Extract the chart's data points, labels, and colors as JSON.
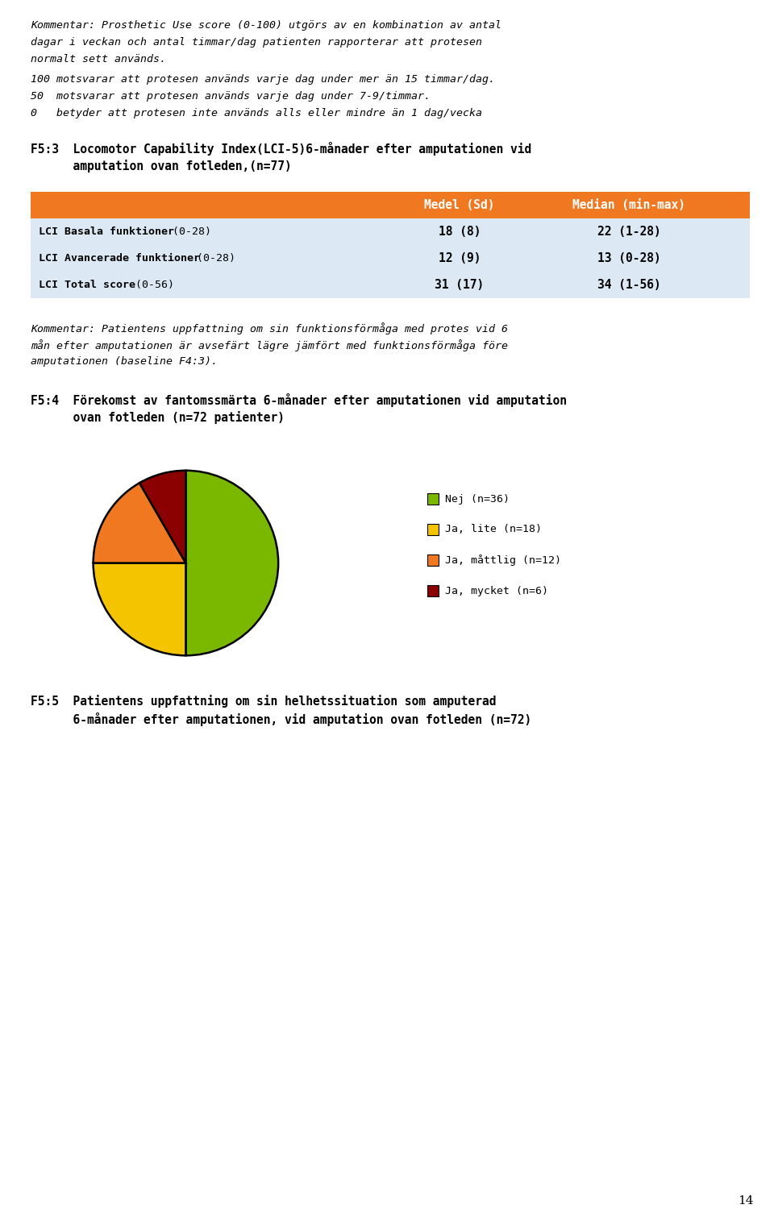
{
  "background_color": "#ffffff",
  "page_number": "14",
  "comment_text_1_lines": [
    "Kommentar: Prosthetic Use score (0-100) utgörs av en kombination av antal",
    "dagar i veckan och antal timmar/dag patienten rapporterar att protesen",
    "normalt sett används."
  ],
  "comment_text_2": "100 motsvarar att protesen används varje dag under mer än 15 timmar/dag.",
  "comment_text_3": "50  motsvarar att protesen används varje dag under 7-9/timmar.",
  "comment_text_4": "0   betyder att protesen inte används alls eller mindre än 1 dag/vecka",
  "section_title_f53_lines": [
    "F5:3  Locomotor Capability Index(LCI-5)6-månader efter amputationen vid",
    "      amputation ovan fotleden,(n=77)"
  ],
  "table_header_col2": "Medel (Sd)",
  "table_header_col3": "Median (min-max)",
  "table_header_color": "#f07820",
  "table_header_text_color": "#ffffff",
  "table_rows": [
    {
      "label": "LCI Basala funktioner",
      "range": "(0-28)",
      "col2": "18 (8)",
      "col3": "22 (1-28)"
    },
    {
      "label": "LCI Avancerade funktioner",
      "range": "(0-28)",
      "col2": "12 (9)",
      "col3": "13 (0-28)"
    },
    {
      "label": "LCI Total score",
      "range": "(0-56)",
      "col2": "31 (17)",
      "col3": "34 (1-56)"
    }
  ],
  "table_row_bg_color": "#dce9f5",
  "comment_text_5_lines": [
    "Kommentar: Patientens uppfattning om sin funktionsförmåga med protes vid 6",
    "mån efter amputationen är avsefärt lägre jämfört med funktionsförmåga före",
    "amputationen (baseline F4:3)."
  ],
  "section_title_f54_lines": [
    "F5:4  Förekomst av fantomssmärta 6-månader efter amputationen vid amputation",
    "      ovan fotleden (n=72 patienter)"
  ],
  "pie_values": [
    36,
    18,
    12,
    6
  ],
  "pie_colors": [
    "#7ab800",
    "#f5c400",
    "#f07820",
    "#8b0000"
  ],
  "pie_labels": [
    "Nej (n=36)",
    "Ja, lite (n=18)",
    "Ja, måttlig (n=12)",
    "Ja, mycket (n=6)"
  ],
  "pie_startangle": 90,
  "section_title_f55_lines": [
    "F5:5  Patientens uppfattning om sin helhetssituation som amputerad",
    "      6-månader efter amputationen, vid amputation ovan fotleden (n=72)"
  ],
  "font_family": "monospace",
  "font_size_body": 9.5,
  "font_size_section": 10.5
}
